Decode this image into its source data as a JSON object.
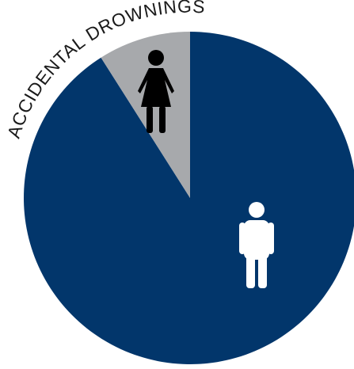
{
  "chart_data": {
    "type": "pie",
    "title": "ACCIDENTAL DROWNINGS",
    "slices": [
      {
        "category": "male",
        "value": 91,
        "icon": "male-figure-icon",
        "color": "#02366b",
        "icon_color": "#ffffff"
      },
      {
        "category": "female",
        "value": 9,
        "icon": "female-figure-icon",
        "color": "#a7a9ac",
        "icon_color": "#000000"
      }
    ]
  }
}
